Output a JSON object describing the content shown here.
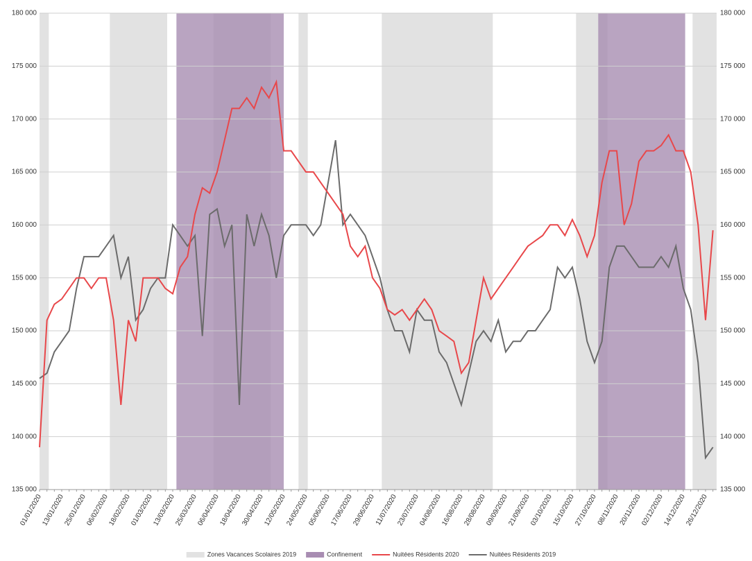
{
  "chart_data": {
    "type": "line",
    "categories": [
      "01/01/2020",
      "05/01/2020",
      "09/01/2020",
      "13/01/2020",
      "17/01/2020",
      "21/01/2020",
      "25/01/2020",
      "29/01/2020",
      "02/02/2020",
      "06/02/2020",
      "10/02/2020",
      "14/02/2020",
      "18/02/2020",
      "22/02/2020",
      "26/02/2020",
      "01/03/2020",
      "05/03/2020",
      "09/03/2020",
      "13/03/2020",
      "17/03/2020",
      "21/03/2020",
      "25/03/2020",
      "29/03/2020",
      "02/04/2020",
      "06/04/2020",
      "10/04/2020",
      "14/04/2020",
      "18/04/2020",
      "22/04/2020",
      "26/04/2020",
      "30/04/2020",
      "04/05/2020",
      "08/05/2020",
      "12/05/2020",
      "16/05/2020",
      "20/05/2020",
      "24/05/2020",
      "28/05/2020",
      "01/06/2020",
      "05/06/2020",
      "09/06/2020",
      "13/06/2020",
      "17/06/2020",
      "21/06/2020",
      "25/06/2020",
      "29/06/2020",
      "03/07/2020",
      "07/07/2020",
      "11/07/2020",
      "15/07/2020",
      "19/07/2020",
      "23/07/2020",
      "27/07/2020",
      "31/07/2020",
      "04/08/2020",
      "08/08/2020",
      "12/08/2020",
      "16/08/2020",
      "20/08/2020",
      "24/08/2020",
      "28/08/2020",
      "01/09/2020",
      "05/09/2020",
      "09/09/2020",
      "13/09/2020",
      "17/09/2020",
      "21/09/2020",
      "25/09/2020",
      "29/09/2020",
      "03/10/2020",
      "07/10/2020",
      "11/10/2020",
      "15/10/2020",
      "19/10/2020",
      "23/10/2020",
      "27/10/2020",
      "31/10/2020",
      "04/11/2020",
      "08/11/2020",
      "12/11/2020",
      "16/11/2020",
      "20/11/2020",
      "24/11/2020",
      "28/11/2020",
      "02/12/2020",
      "06/12/2020",
      "10/12/2020",
      "14/12/2020",
      "18/12/2020",
      "22/12/2020",
      "26/12/2020",
      "30/12/2020"
    ],
    "xlim": [
      "01/01/2020",
      "31/12/2020"
    ],
    "bands": [
      {
        "name": "Zones Vacances Scolaires 2019",
        "color": "#e2e2e2",
        "ranges": [
          [
            "01/01/2020",
            "05/01/2020"
          ],
          [
            "08/02/2020",
            "09/03/2020"
          ],
          [
            "04/04/2020",
            "04/05/2020"
          ],
          [
            "20/05/2020",
            "24/05/2020"
          ],
          [
            "04/07/2020",
            "01/09/2020"
          ],
          [
            "17/10/2020",
            "02/11/2020"
          ],
          [
            "19/12/2020",
            "31/12/2020"
          ]
        ]
      },
      {
        "name": "Confinement",
        "color": "#a88db2",
        "ranges": [
          [
            "15/03/2020",
            "11/05/2020"
          ],
          [
            "29/10/2020",
            "14/12/2020"
          ]
        ]
      }
    ],
    "series": [
      {
        "name": "Nuitées Résidents 2020",
        "color": "#e8474a",
        "values": [
          139000,
          151000,
          152500,
          153000,
          154000,
          155000,
          155000,
          154000,
          155000,
          155000,
          151000,
          143000,
          151000,
          149000,
          155000,
          155000,
          155000,
          154000,
          153500,
          156000,
          157000,
          161000,
          163500,
          163000,
          165000,
          168000,
          171000,
          171000,
          172000,
          171000,
          173000,
          172000,
          173500,
          167000,
          167000,
          166000,
          165000,
          165000,
          164000,
          163000,
          162000,
          161000,
          158000,
          157000,
          158000,
          155000,
          154000,
          152000,
          151500,
          152000,
          151000,
          152000,
          153000,
          152000,
          150000,
          149500,
          149000,
          146000,
          147000,
          151000,
          155000,
          153000,
          154000,
          155000,
          156000,
          157000,
          158000,
          158500,
          159000,
          160000,
          160000,
          159000,
          160500,
          159000,
          157000,
          159000,
          164000,
          167000,
          167000,
          160000,
          162000,
          166000,
          167000,
          167000,
          167500,
          168500,
          167000,
          167000,
          165000,
          160000,
          151000,
          159500
        ]
      },
      {
        "name": "Nuitées Résidents 2019",
        "color": "#6b6b6b",
        "values": [
          145500,
          146000,
          148000,
          149000,
          150000,
          154000,
          157000,
          157000,
          157000,
          158000,
          159000,
          155000,
          157000,
          151000,
          152000,
          154000,
          155000,
          155000,
          160000,
          159000,
          158000,
          159000,
          149500,
          161000,
          161500,
          158000,
          160000,
          143000,
          161000,
          158000,
          161000,
          159000,
          155000,
          159000,
          160000,
          160000,
          160000,
          159000,
          160000,
          164000,
          168000,
          160000,
          161000,
          160000,
          159000,
          157000,
          155000,
          152000,
          150000,
          150000,
          148000,
          152000,
          151000,
          151000,
          148000,
          147000,
          145000,
          143000,
          146000,
          149000,
          150000,
          149000,
          151000,
          148000,
          149000,
          149000,
          150000,
          150000,
          151000,
          152000,
          156000,
          155000,
          156000,
          153000,
          149000,
          147000,
          149000,
          156000,
          158000,
          158000,
          157000,
          156000,
          156000,
          156000,
          157000,
          156000,
          158000,
          154000,
          152000,
          147000,
          138000,
          139000
        ]
      }
    ],
    "ylim": [
      135000,
      180000
    ],
    "yticks": [
      {
        "value": 135000,
        "label": "135 000"
      },
      {
        "value": 140000,
        "label": "140 000"
      },
      {
        "value": 145000,
        "label": "145 000"
      },
      {
        "value": 150000,
        "label": "150 000"
      },
      {
        "value": 155000,
        "label": "155 000"
      },
      {
        "value": 160000,
        "label": "160 000"
      },
      {
        "value": 165000,
        "label": "165 000"
      },
      {
        "value": 170000,
        "label": "170 000"
      },
      {
        "value": 175000,
        "label": "175 000"
      },
      {
        "value": 180000,
        "label": "180 000"
      }
    ],
    "y2lim": [
      135000,
      180000
    ],
    "y2ticks": [
      {
        "value": 135000,
        "label": "135 000"
      },
      {
        "value": 140000,
        "label": "140 000"
      },
      {
        "value": 145000,
        "label": "145 000"
      },
      {
        "value": 150000,
        "label": "150 000"
      },
      {
        "value": 155000,
        "label": "155 000"
      },
      {
        "value": 160000,
        "label": "160 000"
      },
      {
        "value": 165000,
        "label": "165 000"
      },
      {
        "value": 170000,
        "label": "170 000"
      },
      {
        "value": 175000,
        "label": "175 000"
      },
      {
        "value": 180000,
        "label": "180 000"
      }
    ],
    "grid": true,
    "legend": "bottom"
  }
}
